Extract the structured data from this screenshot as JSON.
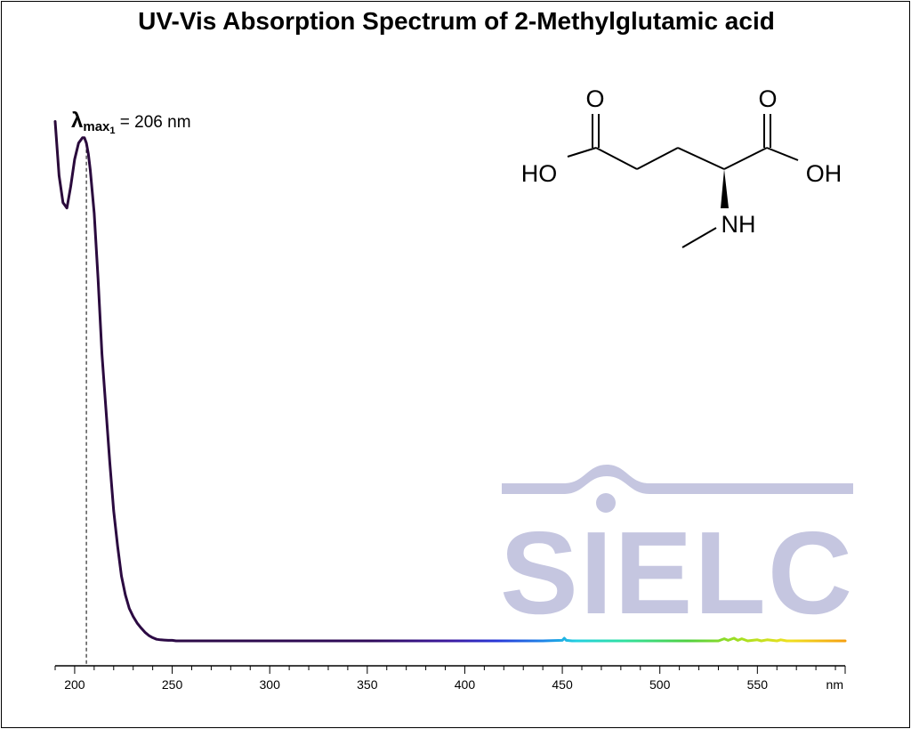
{
  "title": "UV-Vis Absorption Spectrum of 2-Methylglutamic acid",
  "peak_annotation": {
    "symbol": "λ",
    "subscript": "max",
    "sub_index": "1",
    "text": " = 206 nm"
  },
  "molecule": {
    "labels": {
      "o_left": "O",
      "o_right": "O",
      "ho": "HO",
      "oh": "OH",
      "nh": "NH"
    }
  },
  "watermark": {
    "text": "SIELC",
    "color": "#c5c6e0"
  },
  "chart_data": {
    "type": "line",
    "title": "UV-Vis Absorption Spectrum of 2-Methylglutamic acid",
    "xlabel": "",
    "ylabel": "",
    "x_unit": "nm",
    "xlim": [
      190,
      595
    ],
    "x_ticks": [
      200,
      250,
      300,
      350,
      400,
      450,
      500,
      550
    ],
    "ylim": [
      0,
      1.02
    ],
    "grid": false,
    "legend": "none",
    "lambda_max": 206,
    "series": [
      {
        "x": [
          190,
          192,
          194,
          196,
          198,
          200,
          202,
          204,
          205,
          206,
          207,
          208,
          210,
          212,
          214,
          216,
          218,
          220,
          222,
          224,
          226,
          228,
          230,
          232,
          234,
          236,
          238,
          240,
          242,
          244,
          246,
          248,
          250,
          252,
          254,
          256,
          258,
          260,
          300,
          350,
          400,
          440,
          450,
          451,
          452,
          455,
          500,
          530,
          533,
          535,
          538,
          540,
          542,
          545,
          550,
          552,
          555,
          560,
          562,
          565,
          570,
          595
        ],
        "y": [
          0.96,
          0.86,
          0.81,
          0.8,
          0.84,
          0.89,
          0.92,
          0.93,
          0.93,
          0.92,
          0.9,
          0.87,
          0.79,
          0.67,
          0.53,
          0.43,
          0.33,
          0.24,
          0.175,
          0.12,
          0.085,
          0.06,
          0.045,
          0.033,
          0.024,
          0.016,
          0.01,
          0.006,
          0.003,
          0.002,
          0.0015,
          0.001,
          0.001,
          0.0,
          0.0,
          0.0,
          0.0,
          0.0,
          0.0,
          0.0,
          0.0,
          0.0,
          0.001,
          0.005,
          0.001,
          0.0,
          0.0,
          0.0,
          0.004,
          0.001,
          0.005,
          0.001,
          0.004,
          0.0,
          0.002,
          0.0,
          0.002,
          0.0,
          0.002,
          0.0,
          0.0,
          0.0
        ]
      }
    ]
  }
}
